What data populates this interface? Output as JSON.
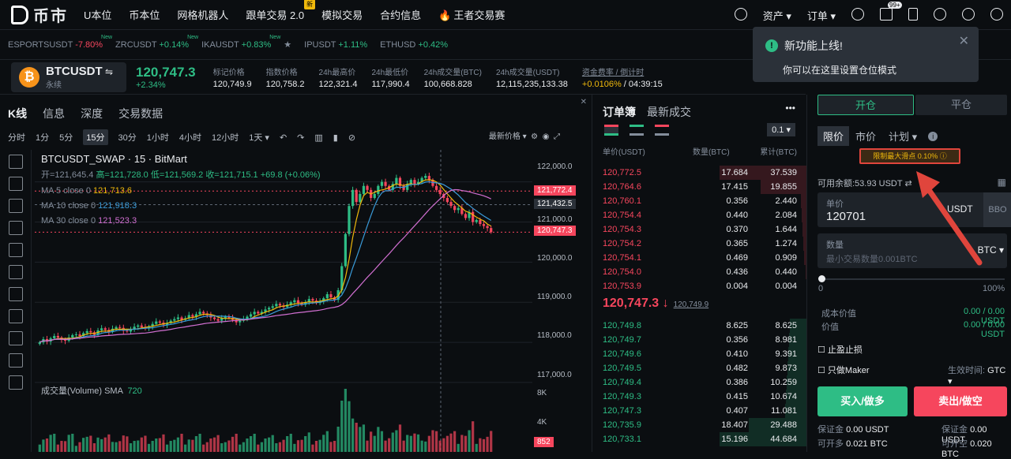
{
  "nav": {
    "logo": "币市",
    "items": [
      "U本位",
      "币本位",
      "网格机器人",
      "跟单交易 2.0",
      "模拟交易",
      "合约信息",
      "王者交易赛"
    ],
    "new_badge": "新",
    "right": [
      "资产",
      "订单"
    ],
    "mail_badge": "99+"
  },
  "ticker": [
    {
      "s": "ESPORTSUSDT",
      "c": "-7.80%",
      "n": "New"
    },
    {
      "s": "ZRCUSDT",
      "c": "+0.14%",
      "n": "New"
    },
    {
      "s": "IKAUSDT",
      "c": "+0.83%",
      "n": "New"
    },
    {
      "s": "IPUSDT",
      "c": "+1.11%",
      "n": ""
    },
    {
      "s": "ETHUSD",
      "c": "+0.42%",
      "n": ""
    }
  ],
  "market": {
    "symbol": "BTCUSDT",
    "type": "永续",
    "last": "120,747.3",
    "change": "+2.34%",
    "stats": [
      {
        "l": "标记价格",
        "v": "120,749.9"
      },
      {
        "l": "指数价格",
        "v": "120,758.2"
      },
      {
        "l": "24h最高价",
        "v": "122,321.4"
      },
      {
        "l": "24h最低价",
        "v": "117,990.4"
      },
      {
        "l": "24h成交量(BTC)",
        "v": "100,668.828"
      },
      {
        "l": "24h成交量(USDT)",
        "v": "12,115,235,133.38"
      }
    ],
    "funding_label": "资金费率 / 倒计时",
    "funding_rate": "+0.0106%",
    "funding_cd": " / 04:39:15"
  },
  "chart_tabs": [
    "K线",
    "信息",
    "深度",
    "交易数据"
  ],
  "intervals": [
    "分时",
    "1分",
    "5分",
    "15分",
    "30分",
    "1小时",
    "4小时",
    "12小时",
    "1天"
  ],
  "last_price_ctl": "最新价格",
  "chart_title": "BTCUSDT_SWAP · 15 · BitMart",
  "ohlc": {
    "o": "开=121,645.4",
    "h": "高=121,728.0",
    "l": "低=121,569.2",
    "c": "收=121,715.1",
    "chg": "+69.8 (+0.06%)"
  },
  "ma": [
    {
      "l": "MA 5 close 0",
      "v": "121,713.6",
      "c": "#f0b90b"
    },
    {
      "l": "MA 10 close 0",
      "v": "121,918.3",
      "c": "#3a9bd9"
    },
    {
      "l": "MA 30 close 0",
      "v": "121,523.3",
      "c": "#d16fd1"
    }
  ],
  "volume_label": "成交量(Volume) SMA",
  "volume_val": "720",
  "chart_data": {
    "type": "candlestick",
    "y_ticks": [
      122000.0,
      121000.0,
      120000.0,
      119000.0,
      118000.0,
      117000.0
    ],
    "y_tick_labels": [
      "122,000.0",
      "121,000.0",
      "120,000.0",
      "119,000.0",
      "118,000.0",
      "117,000.0"
    ],
    "ylim": [
      116900,
      122800
    ],
    "price_labels": [
      {
        "v": "121,772.4",
        "c": "#f6465d"
      },
      {
        "v": "121,432.5",
        "c": "#2b3139"
      },
      {
        "v": "120,747.3",
        "c": "#f6465d"
      }
    ],
    "volume_ticks": [
      "8K",
      "4K"
    ],
    "volume_last": "852",
    "closes": [
      118000,
      118080,
      118020,
      118100,
      118160,
      118120,
      118060,
      118040,
      118120,
      118180,
      118200,
      118160,
      118230,
      118280,
      118250,
      118190,
      118300,
      118350,
      118310,
      118260,
      118340,
      118380,
      118360,
      118290,
      118270,
      118330,
      118390,
      118420,
      118380,
      118350,
      118400,
      118460,
      118520,
      118490,
      118440,
      118480,
      118540,
      118580,
      118620,
      118560,
      118600,
      118680,
      118640,
      118700,
      118760,
      118720,
      118680,
      118620,
      118580,
      118540,
      118600,
      118640,
      118610,
      118560,
      118500,
      118540,
      118580,
      118640,
      118700,
      118760,
      118720,
      118760,
      118820,
      118860,
      118900,
      118960,
      118920,
      118880,
      118940,
      119000,
      119050,
      118980,
      118940,
      119000,
      119080,
      119040,
      118980,
      119020,
      119100,
      119200,
      119120,
      119060,
      119300,
      119900,
      120700,
      121400,
      121800,
      121500,
      121700,
      121900,
      121800,
      121600,
      121700,
      121900,
      122000,
      121900,
      121800,
      121950,
      122100,
      121900,
      121800,
      121950,
      122050,
      121950,
      122000,
      122100,
      122150,
      122050,
      121900,
      121800,
      121700,
      121600,
      121500,
      121400,
      121300,
      121350,
      121200,
      121100,
      121250,
      121000,
      121050,
      120950,
      120900,
      120850,
      120747
    ]
  },
  "orderbook": {
    "tabs": [
      "订单簿",
      "最新成交"
    ],
    "precision": "0.1",
    "headers": [
      "单价(USDT)",
      "数量(BTC)",
      "累计(BTC)"
    ],
    "asks": [
      [
        "120,772.5",
        "17.684",
        "37.539"
      ],
      [
        "120,764.6",
        "17.415",
        "19.855"
      ],
      [
        "120,760.1",
        "0.356",
        "2.440"
      ],
      [
        "120,754.4",
        "0.440",
        "2.084"
      ],
      [
        "120,754.3",
        "0.370",
        "1.644"
      ],
      [
        "120,754.2",
        "0.365",
        "1.274"
      ],
      [
        "120,754.1",
        "0.469",
        "0.909"
      ],
      [
        "120,754.0",
        "0.436",
        "0.440"
      ],
      [
        "120,753.9",
        "0.004",
        "0.004"
      ]
    ],
    "mid": "120,747.3",
    "mid_arrow": "↓",
    "mark": "120,749.9",
    "bids": [
      [
        "120,749.8",
        "8.625",
        "8.625"
      ],
      [
        "120,749.7",
        "0.356",
        "8.981"
      ],
      [
        "120,749.6",
        "0.410",
        "9.391"
      ],
      [
        "120,749.5",
        "0.482",
        "9.873"
      ],
      [
        "120,749.4",
        "0.386",
        "10.259"
      ],
      [
        "120,749.3",
        "0.415",
        "10.674"
      ],
      [
        "120,747.3",
        "0.407",
        "11.081"
      ],
      [
        "120,735.9",
        "18.407",
        "29.488"
      ],
      [
        "120,733.1",
        "15.196",
        "44.684"
      ]
    ]
  },
  "toast": {
    "title": "新功能上线!",
    "body": "你可以在这里设置仓位模式"
  },
  "trade": {
    "open": "开仓",
    "close": "平仓",
    "types": [
      "限价",
      "市价",
      "计划"
    ],
    "slippage": "限制最大滑点 0.10%",
    "balance": "可用余额:53.93 USDT",
    "price_label": "单价",
    "price_value": "120701",
    "price_unit": "USDT",
    "bbo": "BBO",
    "qty_label": "数量",
    "qty_placeholder": "最小交易数量0.001BTC",
    "qty_unit": "BTC",
    "pct0": "0",
    "pct100": "100%",
    "cost_label": "成本价值",
    "cost_value": "0.00 / 0.00 USDT",
    "value_label": "价值",
    "value_value": "0.00 / 0.00 USDT",
    "tpsl": "止盈止损",
    "maker": "只做Maker",
    "tif_label": "生效时间:",
    "tif": "GTC",
    "buy": "买入/做多",
    "sell": "卖出/做空",
    "margin_l": "保证金",
    "margin_v": "0.00 USDT",
    "margin_v2": "0.00 USDT",
    "can_open": "可开多",
    "can_open_v": "0.021 BTC",
    "can_short": "可开空",
    "can_short_v": "0.020 BTC"
  }
}
